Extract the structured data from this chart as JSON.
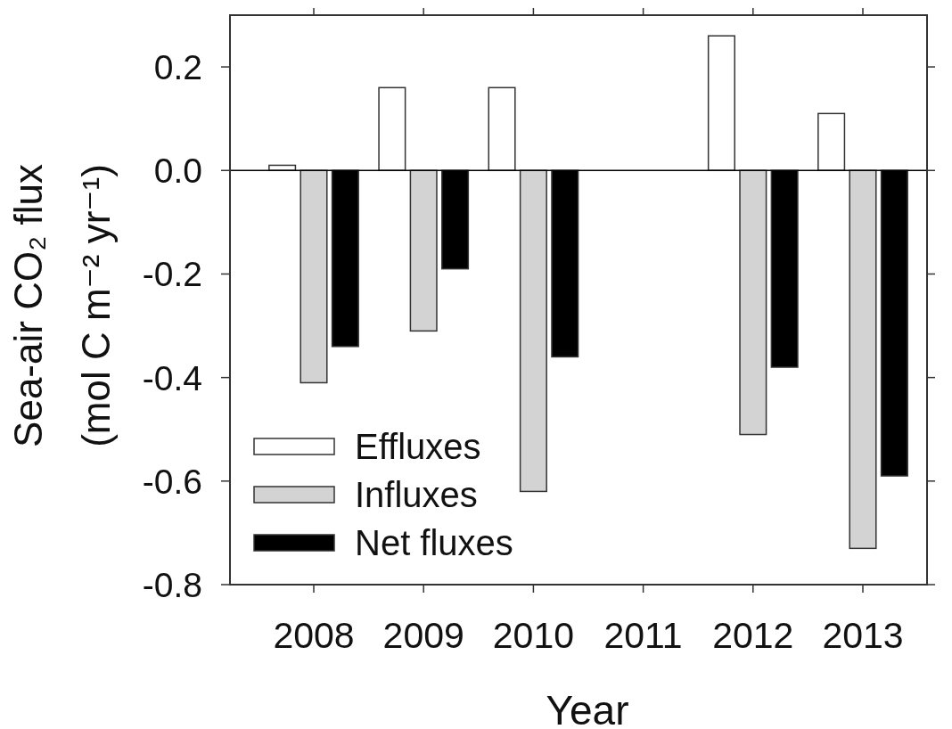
{
  "chart_data": {
    "type": "bar",
    "xlabel": "Year",
    "ylabel": "Sea-air CO₂ flux\n(mol C m⁻² yr⁻¹)",
    "categories": [
      "2008",
      "2009",
      "2010",
      "2011",
      "2012",
      "2013"
    ],
    "series": [
      {
        "name": "Effluxes",
        "color": "#ffffff",
        "values": [
          0.01,
          0.16,
          0.16,
          null,
          0.26,
          0.11
        ]
      },
      {
        "name": "Influxes",
        "color": "#d3d3d3",
        "values": [
          -0.41,
          -0.31,
          -0.62,
          null,
          -0.51,
          -0.73
        ]
      },
      {
        "name": "Net fluxes",
        "color": "#000000",
        "values": [
          -0.34,
          -0.19,
          -0.36,
          null,
          -0.38,
          -0.59
        ]
      }
    ],
    "ylim": [
      -0.8,
      0.3
    ],
    "yticks": [
      -0.8,
      -0.6,
      -0.4,
      -0.2,
      {
        "value": 0,
        "label": "0.0"
      },
      0.2
    ],
    "ref_lines": [
      {
        "axis": "y",
        "value": 0,
        "color": "#000000"
      }
    ],
    "legend": "bottom left"
  }
}
